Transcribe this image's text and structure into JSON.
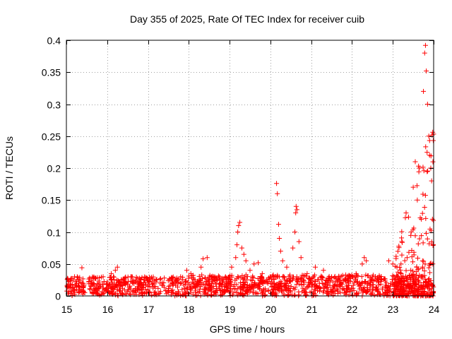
{
  "chart_data": {
    "type": "scatter",
    "title": "Day 355 of 2025, Rate Of TEC Index for receiver cuib",
    "xlabel": "GPS time / hours",
    "ylabel": "ROTI / TECUs",
    "xlim": [
      15,
      24
    ],
    "ylim": [
      0,
      0.4
    ],
    "x_ticks": [
      15,
      16,
      17,
      18,
      19,
      20,
      21,
      22,
      23,
      24
    ],
    "y_ticks": [
      0,
      0.05,
      0.1,
      0.15,
      0.2,
      0.25,
      0.3,
      0.35,
      0.4
    ],
    "x_tick_labels": [
      "15",
      "16",
      "17",
      "18",
      "19",
      "20",
      "21",
      "22",
      "23",
      "24"
    ],
    "y_tick_labels": [
      "0",
      "0.05",
      "0.1",
      "0.15",
      "0.2",
      "0.25",
      "0.3",
      "0.35",
      "0.4"
    ],
    "grid": true,
    "marker": "+",
    "color": "#ff0000",
    "series": [
      {
        "name": "ROTI",
        "note": "dense background band 15.0-24.0 h, ROTI ~0.0-0.035 (sampled)",
        "points": [
          [
            15.05,
            0.018
          ],
          [
            15.1,
            0.025
          ],
          [
            15.15,
            0.012
          ],
          [
            15.2,
            0.03
          ],
          [
            15.25,
            0.02
          ],
          [
            15.3,
            0.015
          ],
          [
            15.38,
            0.044
          ],
          [
            15.45,
            0.005
          ],
          [
            15.55,
            0.022
          ],
          [
            15.6,
            0.015
          ],
          [
            15.7,
            0.028
          ],
          [
            15.8,
            0.018
          ],
          [
            15.9,
            0.03
          ],
          [
            16.0,
            0.022
          ],
          [
            16.1,
            0.035
          ],
          [
            16.15,
            0.03
          ],
          [
            16.2,
            0.04
          ],
          [
            16.25,
            0.045
          ],
          [
            16.35,
            0.025
          ],
          [
            16.5,
            0.018
          ],
          [
            16.6,
            0.03
          ],
          [
            16.75,
            0.02
          ],
          [
            16.9,
            0.025
          ],
          [
            17.0,
            0.015
          ],
          [
            17.2,
            0.022
          ],
          [
            17.4,
            0.028
          ],
          [
            17.6,
            0.02
          ],
          [
            17.8,
            0.03
          ],
          [
            17.95,
            0.04
          ],
          [
            18.05,
            0.035
          ],
          [
            18.15,
            0.025
          ],
          [
            18.3,
            0.045
          ],
          [
            18.35,
            0.058
          ],
          [
            18.45,
            0.06
          ],
          [
            18.55,
            0.03
          ],
          [
            18.7,
            0.025
          ],
          [
            18.9,
            0.03
          ],
          [
            19.05,
            0.045
          ],
          [
            19.15,
            0.06
          ],
          [
            19.18,
            0.08
          ],
          [
            19.2,
            0.1
          ],
          [
            19.22,
            0.11
          ],
          [
            19.25,
            0.115
          ],
          [
            19.3,
            0.075
          ],
          [
            19.35,
            0.065
          ],
          [
            19.4,
            0.055
          ],
          [
            19.5,
            0.04
          ],
          [
            19.6,
            0.05
          ],
          [
            19.7,
            0.052
          ],
          [
            19.8,
            0.035
          ],
          [
            20.0,
            0.03
          ],
          [
            20.15,
            0.176
          ],
          [
            20.17,
            0.16
          ],
          [
            20.2,
            0.112
          ],
          [
            20.22,
            0.09
          ],
          [
            20.25,
            0.07
          ],
          [
            20.3,
            0.055
          ],
          [
            20.4,
            0.045
          ],
          [
            20.55,
            0.075
          ],
          [
            20.6,
            0.1
          ],
          [
            20.62,
            0.13
          ],
          [
            20.63,
            0.14
          ],
          [
            20.65,
            0.135
          ],
          [
            20.7,
            0.085
          ],
          [
            20.75,
            0.06
          ],
          [
            20.9,
            0.035
          ],
          [
            21.1,
            0.045
          ],
          [
            21.3,
            0.04
          ],
          [
            21.5,
            0.03
          ],
          [
            21.7,
            0.025
          ],
          [
            21.9,
            0.03
          ],
          [
            22.1,
            0.035
          ],
          [
            22.25,
            0.05
          ],
          [
            22.3,
            0.06
          ],
          [
            22.35,
            0.055
          ],
          [
            22.5,
            0.03
          ],
          [
            22.7,
            0.025
          ],
          [
            22.9,
            0.055
          ],
          [
            23.0,
            0.05
          ],
          [
            23.1,
            0.045
          ],
          [
            23.2,
            0.05
          ],
          [
            23.35,
            0.06
          ],
          [
            23.45,
            0.1
          ],
          [
            23.5,
            0.17
          ],
          [
            23.55,
            0.21
          ],
          [
            23.6,
            0.15
          ],
          [
            23.65,
            0.2
          ],
          [
            23.7,
            0.12
          ],
          [
            23.75,
            0.32
          ],
          [
            23.78,
            0.38
          ],
          [
            23.8,
            0.392
          ],
          [
            23.82,
            0.352
          ],
          [
            23.85,
            0.3
          ],
          [
            23.88,
            0.25
          ],
          [
            23.9,
            0.22
          ],
          [
            23.93,
            0.2
          ],
          [
            23.95,
            0.18
          ],
          [
            23.97,
            0.12
          ],
          [
            23.98,
            0.05
          ]
        ]
      }
    ]
  }
}
